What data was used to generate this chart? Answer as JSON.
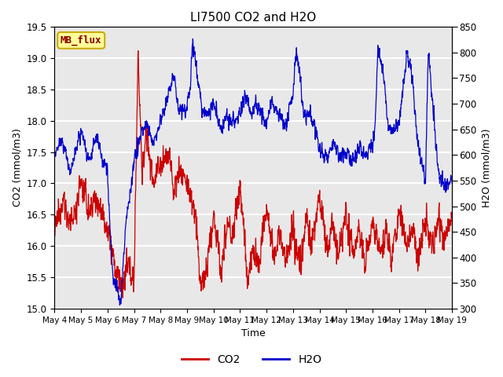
{
  "title": "LI7500 CO2 and H2O",
  "xlabel": "Time",
  "ylabel_left": "CO2 (mmol/m3)",
  "ylabel_right": "H2O (mmol/m3)",
  "ylim_left": [
    15.0,
    19.5
  ],
  "ylim_right": [
    300,
    850
  ],
  "yticks_left": [
    15.0,
    15.5,
    16.0,
    16.5,
    17.0,
    17.5,
    18.0,
    18.5,
    19.0,
    19.5
  ],
  "yticks_right": [
    300,
    350,
    400,
    450,
    500,
    550,
    600,
    650,
    700,
    750,
    800,
    850
  ],
  "xtick_labels": [
    "May 4",
    "May 5",
    "May 6",
    "May 7",
    "May 8",
    "May 9",
    "May 10",
    "May 11",
    "May 12",
    "May 13",
    "May 14",
    "May 15",
    "May 16",
    "May 17",
    "May 18",
    "May 19"
  ],
  "co2_color": "#cc0000",
  "h2o_color": "#0000cc",
  "legend_box_color": "#ffff99",
  "legend_box_edge": "#ccaa00",
  "annotation_text": "MB_flux",
  "annotation_color": "#880000",
  "plot_bg_color": "#e8e8e8",
  "line_width": 0.9,
  "legend_line_color_co2": "#dd0000",
  "legend_line_color_h2o": "#0000dd"
}
